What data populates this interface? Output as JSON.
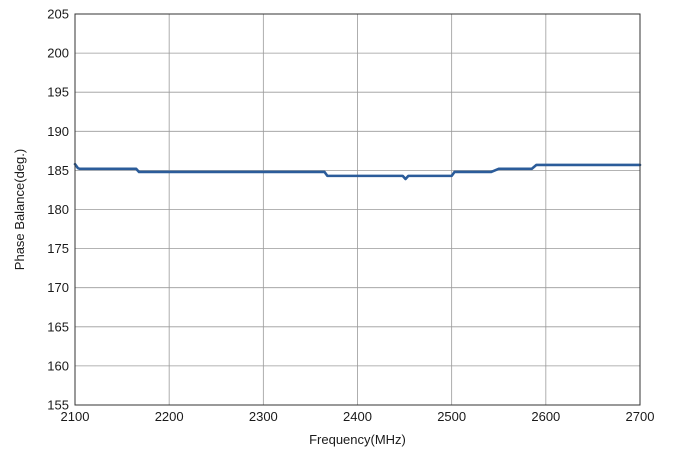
{
  "chart_data": {
    "type": "line",
    "xlabel": "Frequency(MHz)",
    "ylabel": "Phase Balance(deg.)",
    "xlim": [
      2100,
      2700
    ],
    "ylim": [
      155,
      205
    ],
    "x_ticks": [
      2100,
      2200,
      2300,
      2400,
      2500,
      2600,
      2700
    ],
    "y_ticks": [
      155,
      160,
      165,
      170,
      175,
      180,
      185,
      190,
      195,
      200,
      205
    ],
    "grid": true,
    "legend": "none",
    "series": [
      {
        "color": "#2b5c9a",
        "x": [
          2100,
          2103,
          2105,
          2165,
          2168,
          2365,
          2368,
          2448,
          2451,
          2454,
          2500,
          2503,
          2542,
          2550,
          2585,
          2590,
          2700
        ],
        "y": [
          185.8,
          185.3,
          185.2,
          185.2,
          184.8,
          184.8,
          184.3,
          184.3,
          183.9,
          184.3,
          184.3,
          184.8,
          184.8,
          185.2,
          185.2,
          185.7,
          185.7
        ]
      }
    ]
  }
}
